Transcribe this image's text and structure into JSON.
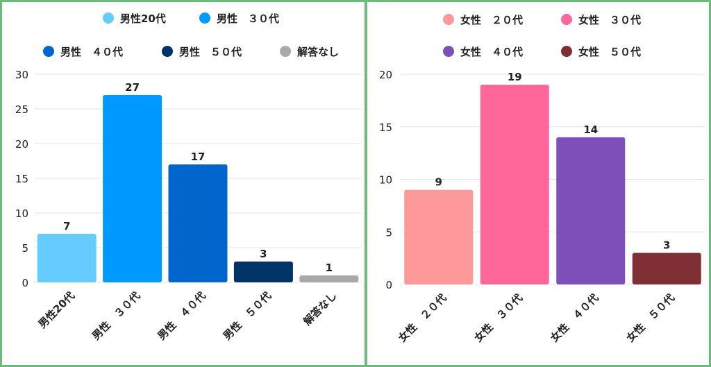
{
  "chart_data": [
    {
      "type": "bar",
      "categories": [
        "男性20代",
        "男性　３０代",
        "男性　４０代",
        "男性　５０代",
        "解答なし"
      ],
      "values": [
        7,
        27,
        17,
        3,
        1
      ],
      "colors": [
        "#66ccff",
        "#0099ff",
        "#0066cc",
        "#003366",
        "#a9a9a9"
      ],
      "ylim": [
        0,
        30
      ],
      "yticks": [
        0,
        5,
        10,
        15,
        20,
        25,
        30
      ],
      "grid": true,
      "legend": "top"
    },
    {
      "type": "bar",
      "categories": [
        "女性　２０代",
        "女性　３０代",
        "女性　４０代",
        "女性　５０代"
      ],
      "values": [
        9,
        19,
        14,
        3
      ],
      "colors": [
        "#ff9999",
        "#ff6699",
        "#7f4fb9",
        "#7f2f33"
      ],
      "ylim": [
        0,
        20
      ],
      "yticks": [
        0,
        5,
        10,
        15,
        20
      ],
      "grid": true,
      "legend": "top"
    }
  ]
}
